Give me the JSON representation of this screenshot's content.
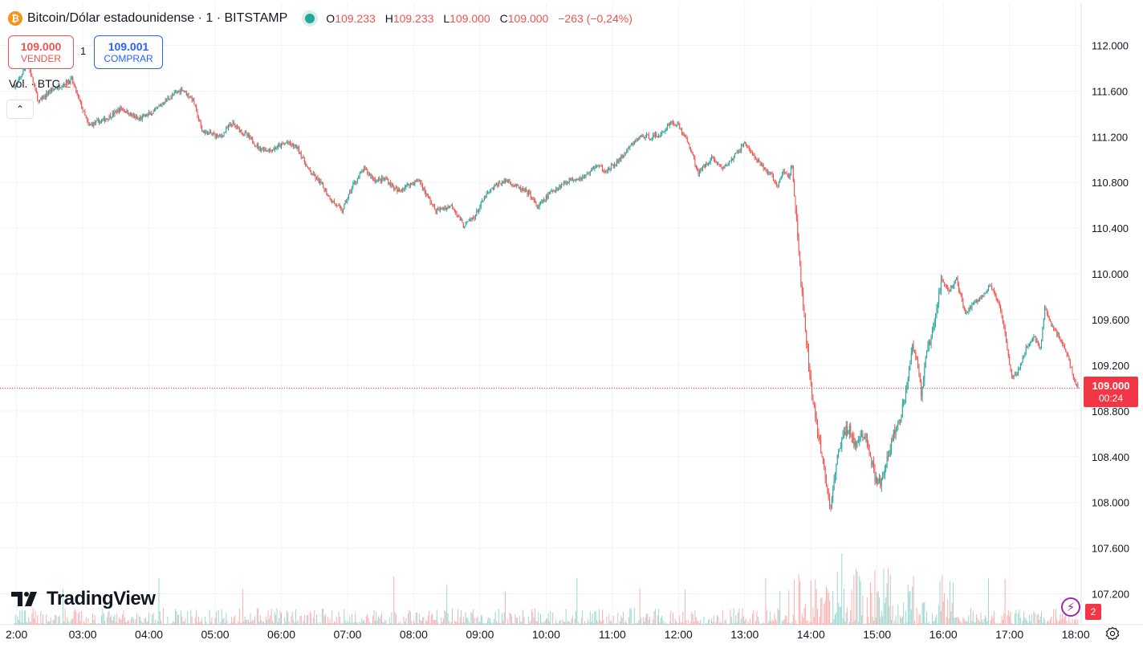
{
  "header": {
    "coin_glyph": "₿",
    "symbol": "Bitcoin/Dólar estadounidense · 1 · BITSTAMP",
    "ohlc": {
      "o_label": "O",
      "o_value": "109.233",
      "h_label": "H",
      "h_value": "109.233",
      "l_label": "L",
      "l_value": "109.000",
      "c_label": "C",
      "c_value": "109.000",
      "change": "−263 (−0,24%)"
    }
  },
  "trade": {
    "sell_price": "109.000",
    "sell_label": "VENDER",
    "quantity": "1",
    "buy_price": "109.001",
    "buy_label": "COMPRAR"
  },
  "volume_legend": {
    "label": "Vol. · BTC",
    "value": "2"
  },
  "collapse_glyph": "⌃",
  "logo": {
    "text": "TradingView"
  },
  "last_price": {
    "price": "109.000",
    "countdown": "00:24"
  },
  "flash_glyph": "⚡",
  "alert_count": "2",
  "colors": {
    "up": "#26a69a",
    "down": "#ef5350",
    "grid": "#f0f3fa",
    "axis_text": "#131722",
    "last_price": "#f23645"
  },
  "chart_data": {
    "type": "candlestick",
    "interval_minutes": 1,
    "y_axis": {
      "min": 107000,
      "max": 112200,
      "ticks": [
        "107.200",
        "107.600",
        "108.000",
        "108.400",
        "108.800",
        "109.200",
        "109.600",
        "110.000",
        "110.400",
        "110.800",
        "111.200",
        "111.600",
        "112.000"
      ],
      "position": "right"
    },
    "x_axis": {
      "start": "02:00",
      "end": "18:05",
      "ticks": [
        "2:00",
        "03:00",
        "04:00",
        "05:00",
        "06:00",
        "07:00",
        "08:00",
        "09:00",
        "10:00",
        "11:00",
        "12:00",
        "13:00",
        "14:00",
        "15:00",
        "16:00",
        "17:00",
        "18:00"
      ]
    },
    "grid": true,
    "price_path": [
      [
        "02:00",
        111650
      ],
      [
        "02:10",
        111850
      ],
      [
        "02:20",
        111500
      ],
      [
        "02:30",
        111600
      ],
      [
        "02:40",
        111650
      ],
      [
        "02:50",
        111700
      ],
      [
        "03:05",
        111300
      ],
      [
        "03:20",
        111350
      ],
      [
        "03:35",
        111450
      ],
      [
        "03:50",
        111350
      ],
      [
        "04:05",
        111420
      ],
      [
        "04:15",
        111520
      ],
      [
        "04:30",
        111620
      ],
      [
        "04:40",
        111520
      ],
      [
        "04:48",
        111250
      ],
      [
        "05:05",
        111200
      ],
      [
        "05:15",
        111320
      ],
      [
        "05:30",
        111200
      ],
      [
        "05:40",
        111100
      ],
      [
        "05:50",
        111080
      ],
      [
        "06:05",
        111150
      ],
      [
        "06:15",
        111100
      ],
      [
        "06:25",
        110900
      ],
      [
        "06:35",
        110800
      ],
      [
        "06:45",
        110650
      ],
      [
        "06:55",
        110550
      ],
      [
        "07:05",
        110780
      ],
      [
        "07:15",
        110920
      ],
      [
        "07:25",
        110820
      ],
      [
        "07:35",
        110830
      ],
      [
        "07:45",
        110720
      ],
      [
        "07:55",
        110780
      ],
      [
        "08:05",
        110820
      ],
      [
        "08:10",
        110720
      ],
      [
        "08:20",
        110550
      ],
      [
        "08:35",
        110600
      ],
      [
        "08:45",
        110420
      ],
      [
        "08:55",
        110500
      ],
      [
        "09:05",
        110680
      ],
      [
        "09:15",
        110780
      ],
      [
        "09:25",
        110820
      ],
      [
        "09:35",
        110750
      ],
      [
        "09:45",
        110700
      ],
      [
        "09:52",
        110580
      ],
      [
        "10:05",
        110720
      ],
      [
        "10:20",
        110820
      ],
      [
        "10:35",
        110850
      ],
      [
        "10:45",
        110950
      ],
      [
        "10:55",
        110900
      ],
      [
        "11:05",
        110980
      ],
      [
        "11:15",
        111100
      ],
      [
        "11:25",
        111200
      ],
      [
        "11:35",
        111200
      ],
      [
        "11:45",
        111220
      ],
      [
        "11:52",
        111330
      ],
      [
        "12:00",
        111300
      ],
      [
        "12:10",
        111120
      ],
      [
        "12:18",
        110880
      ],
      [
        "12:30",
        111020
      ],
      [
        "12:40",
        110920
      ],
      [
        "12:50",
        111020
      ],
      [
        "13:00",
        111150
      ],
      [
        "13:10",
        111000
      ],
      [
        "13:15",
        110950
      ],
      [
        "13:25",
        110850
      ],
      [
        "13:30",
        110760
      ],
      [
        "13:35",
        110900
      ],
      [
        "13:40",
        110850
      ],
      [
        "13:43",
        110960
      ],
      [
        "13:48",
        110300
      ],
      [
        "13:53",
        109700
      ],
      [
        "13:58",
        109200
      ],
      [
        "14:05",
        108650
      ],
      [
        "14:12",
        108300
      ],
      [
        "14:17",
        107950
      ],
      [
        "14:20",
        108100
      ],
      [
        "14:25",
        108450
      ],
      [
        "14:30",
        108600
      ],
      [
        "14:35",
        108650
      ],
      [
        "14:40",
        108500
      ],
      [
        "14:45",
        108550
      ],
      [
        "14:50",
        108600
      ],
      [
        "14:55",
        108350
      ],
      [
        "15:00",
        108150
      ],
      [
        "15:05",
        108200
      ],
      [
        "15:10",
        108400
      ],
      [
        "15:15",
        108600
      ],
      [
        "15:20",
        108700
      ],
      [
        "15:25",
        108900
      ],
      [
        "15:32",
        109400
      ],
      [
        "15:36",
        109250
      ],
      [
        "15:40",
        108950
      ],
      [
        "15:45",
        109300
      ],
      [
        "15:52",
        109550
      ],
      [
        "15:58",
        109950
      ],
      [
        "16:05",
        109850
      ],
      [
        "16:12",
        109950
      ],
      [
        "16:20",
        109650
      ],
      [
        "16:28",
        109750
      ],
      [
        "16:35",
        109800
      ],
      [
        "16:42",
        109900
      ],
      [
        "16:50",
        109750
      ],
      [
        "16:55",
        109550
      ],
      [
        "17:02",
        109100
      ],
      [
        "17:08",
        109150
      ],
      [
        "17:15",
        109350
      ],
      [
        "17:22",
        109450
      ],
      [
        "17:28",
        109350
      ],
      [
        "17:32",
        109700
      ],
      [
        "17:38",
        109550
      ],
      [
        "17:45",
        109450
      ],
      [
        "17:52",
        109300
      ],
      [
        "17:58",
        109100
      ],
      [
        "18:02",
        109000
      ]
    ]
  }
}
